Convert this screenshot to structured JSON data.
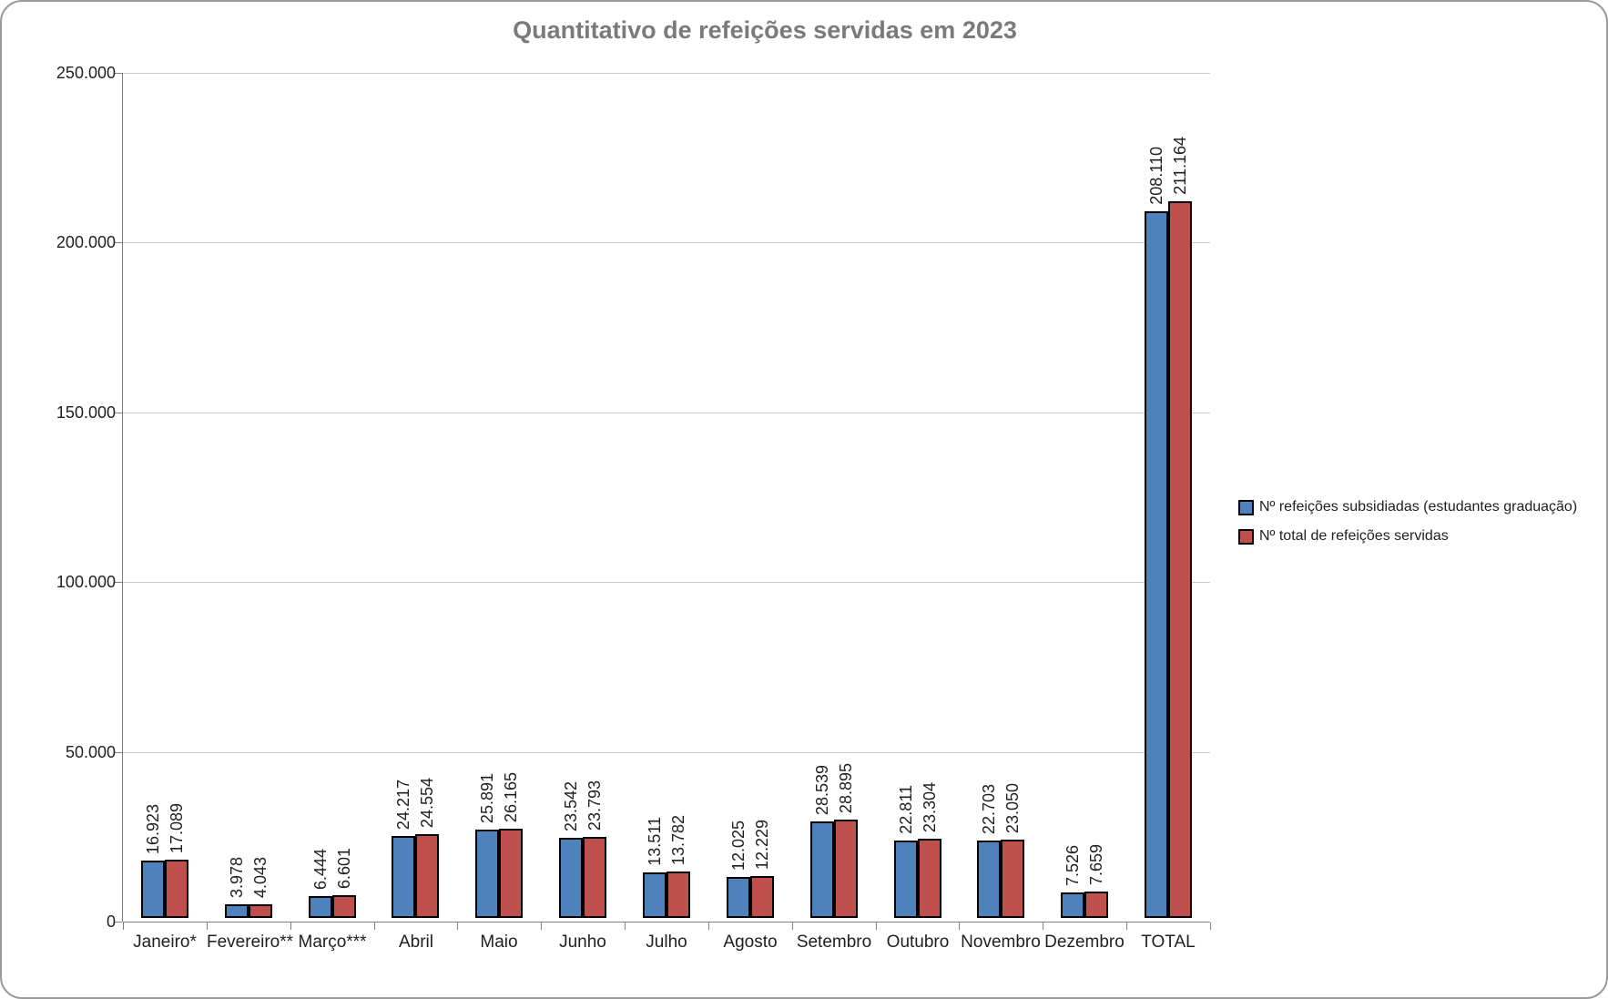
{
  "chart_data": {
    "type": "bar",
    "title": "Quantitativo de refeições servidas em 2023",
    "categories": [
      "Janeiro*",
      "Fevereiro**",
      "Março***",
      "Abril",
      "Maio",
      "Junho",
      "Julho",
      "Agosto",
      "Setembro",
      "Outubro",
      "Novembro",
      "Dezembro",
      "TOTAL"
    ],
    "series": [
      {
        "name": "Nº refeições subsidiadas (estudantes graduação)",
        "color": "#4F81BD",
        "values": [
          16923,
          3978,
          6444,
          24217,
          25891,
          23542,
          13511,
          12025,
          28539,
          22811,
          22703,
          7526,
          208110
        ]
      },
      {
        "name": "Nº total de refeições servidas",
        "color": "#C0504D",
        "values": [
          17089,
          4043,
          6601,
          24554,
          26165,
          23793,
          13782,
          12229,
          28895,
          23304,
          23050,
          7659,
          211164
        ]
      }
    ],
    "data_labels": {
      "shown": true,
      "orientation": "vertical",
      "thousands_separator": "."
    },
    "y_axis": {
      "min": 0,
      "max": 250000,
      "step": 50000,
      "tick_labels": [
        "0",
        "50.000",
        "100.000",
        "150.000",
        "200.000",
        "250.000"
      ]
    },
    "grid": true,
    "legend_position": "right",
    "colors": {
      "bar_border": "#000000",
      "gridline": "#c9c9c9",
      "axis": "#7f7f7f",
      "title_text": "#7a7a7a",
      "label_text": "#1f1f1f"
    }
  }
}
